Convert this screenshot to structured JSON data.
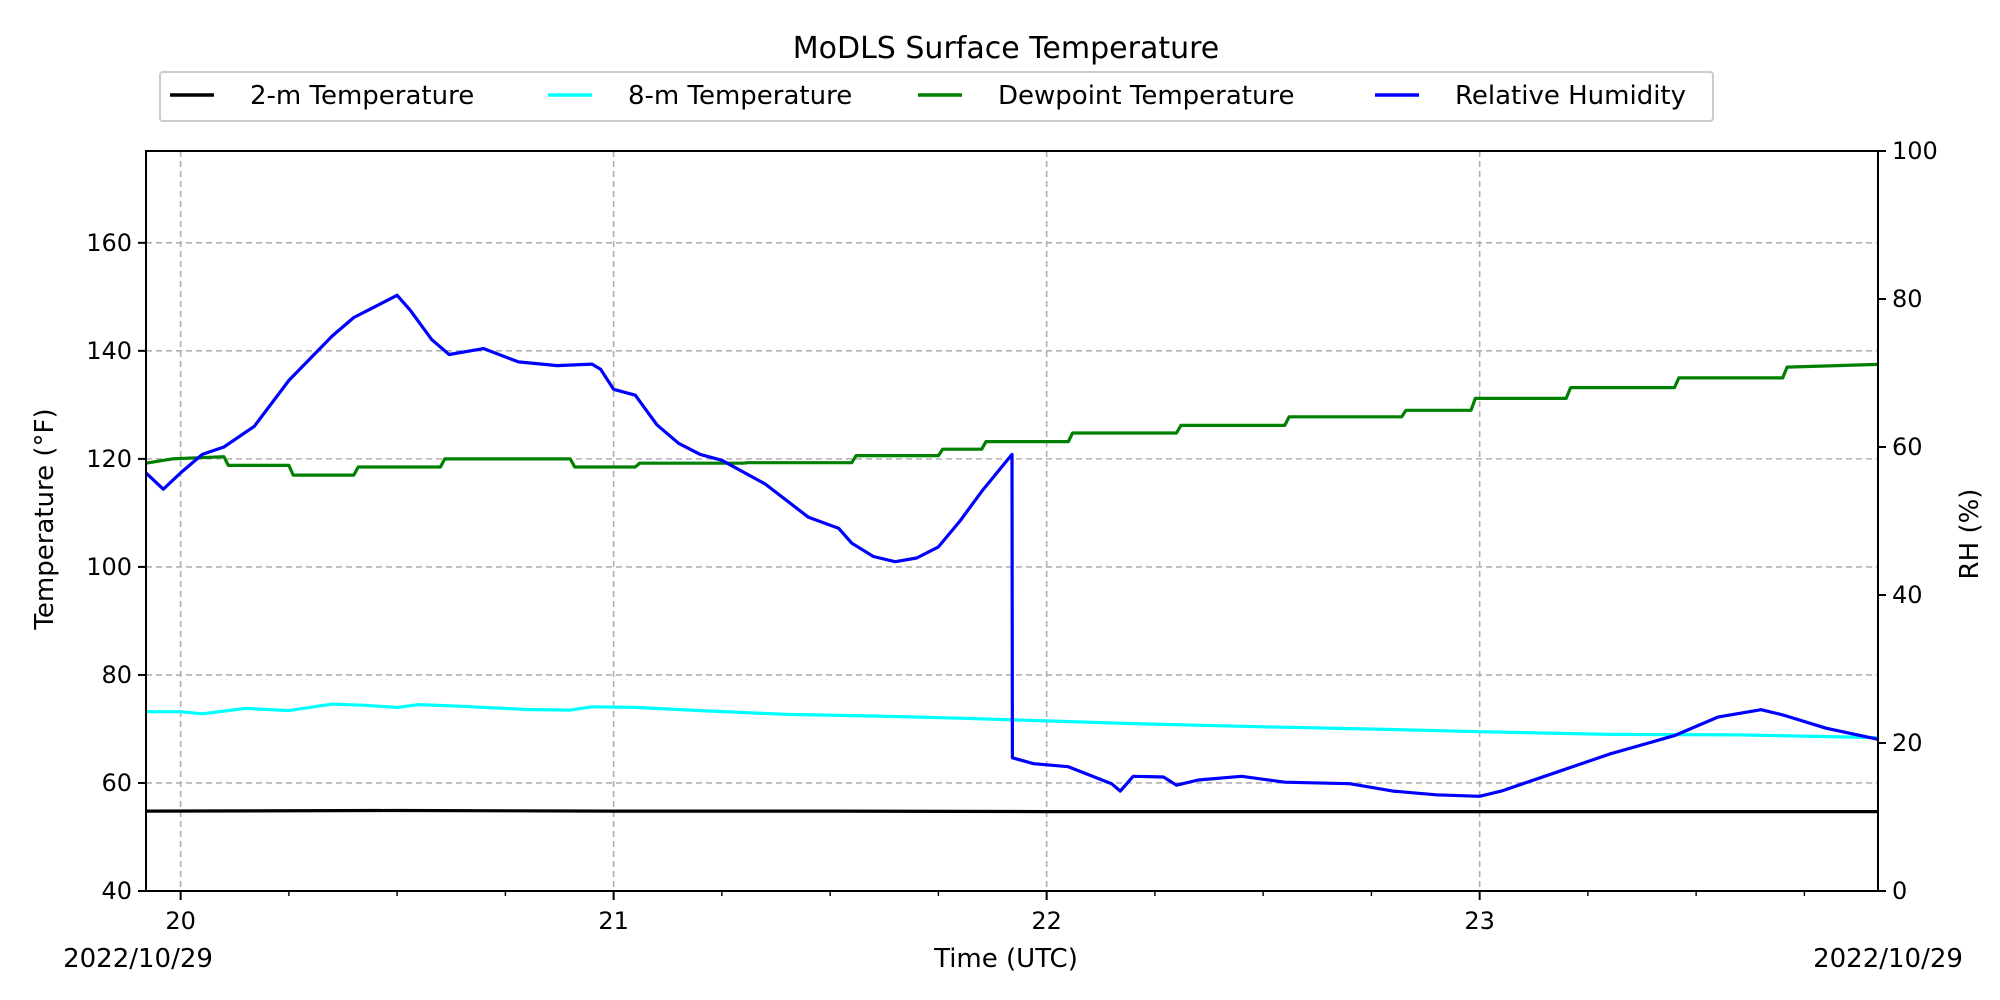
{
  "chart_data": {
    "type": "line",
    "title": "MoDLS Surface Temperature",
    "xlabel": "Time (UTC)",
    "ylabel": "Temperature ($^\\circ$F)",
    "ylabel_display": "Temperature (°F)",
    "y2label": "RH (%)",
    "date_left": "2022/10/29",
    "date_right": "2022/10/29",
    "xlim": [
      19.92,
      23.92
    ],
    "ylim": [
      40,
      177
    ],
    "y2lim": [
      0,
      100
    ],
    "x_ticks": [
      20,
      21,
      22,
      23
    ],
    "x_tick_labels": [
      "20",
      "21",
      "22",
      "23"
    ],
    "y_ticks": [
      40,
      60,
      80,
      100,
      120,
      140,
      160
    ],
    "y_tick_labels": [
      "40",
      "60",
      "80",
      "100",
      "120",
      "140",
      "160"
    ],
    "y2_ticks": [
      0,
      20,
      40,
      60,
      80,
      100
    ],
    "y2_tick_labels": [
      "0",
      "20",
      "40",
      "60",
      "80",
      "100"
    ],
    "grid": true,
    "legend_placement": "top-center, above plot",
    "series": [
      {
        "name": "2-m Temperature",
        "color": "#000000",
        "axis": "left",
        "points": [
          [
            19.92,
            54.8
          ],
          [
            20.5,
            54.9
          ],
          [
            21.0,
            54.8
          ],
          [
            21.5,
            54.8
          ],
          [
            22.0,
            54.7
          ],
          [
            22.5,
            54.7
          ],
          [
            23.0,
            54.7
          ],
          [
            23.5,
            54.7
          ],
          [
            23.92,
            54.7
          ]
        ]
      },
      {
        "name": "8-m Temperature",
        "color": "#00ffff",
        "axis": "left",
        "points": [
          [
            19.92,
            73.2
          ],
          [
            20.0,
            73.2
          ],
          [
            20.05,
            72.8
          ],
          [
            20.15,
            73.8
          ],
          [
            20.25,
            73.4
          ],
          [
            20.35,
            74.6
          ],
          [
            20.42,
            74.4
          ],
          [
            20.5,
            74.0
          ],
          [
            20.55,
            74.5
          ],
          [
            20.65,
            74.2
          ],
          [
            20.8,
            73.6
          ],
          [
            20.9,
            73.5
          ],
          [
            20.95,
            74.1
          ],
          [
            21.05,
            74.0
          ],
          [
            21.2,
            73.4
          ],
          [
            21.4,
            72.7
          ],
          [
            21.6,
            72.4
          ],
          [
            21.8,
            72.0
          ],
          [
            22.0,
            71.5
          ],
          [
            22.2,
            71.0
          ],
          [
            22.5,
            70.4
          ],
          [
            22.8,
            69.9
          ],
          [
            23.0,
            69.5
          ],
          [
            23.3,
            69.0
          ],
          [
            23.6,
            68.9
          ],
          [
            23.92,
            68.4
          ]
        ]
      },
      {
        "name": "Dewpoint Temperature",
        "color": "#008000",
        "axis": "left",
        "points": [
          [
            19.92,
            119.2
          ],
          [
            19.98,
            120.0
          ],
          [
            20.1,
            120.4
          ],
          [
            20.11,
            118.8
          ],
          [
            20.25,
            118.8
          ],
          [
            20.26,
            117.0
          ],
          [
            20.4,
            117.0
          ],
          [
            20.41,
            118.5
          ],
          [
            20.6,
            118.5
          ],
          [
            20.61,
            120.0
          ],
          [
            20.9,
            120.0
          ],
          [
            20.91,
            118.5
          ],
          [
            21.05,
            118.5
          ],
          [
            21.06,
            119.2
          ],
          [
            21.3,
            119.2
          ],
          [
            21.31,
            119.3
          ],
          [
            21.55,
            119.3
          ],
          [
            21.56,
            120.6
          ],
          [
            21.75,
            120.6
          ],
          [
            21.76,
            121.8
          ],
          [
            21.85,
            121.8
          ],
          [
            21.86,
            123.2
          ],
          [
            22.05,
            123.2
          ],
          [
            22.06,
            124.8
          ],
          [
            22.3,
            124.8
          ],
          [
            22.31,
            126.2
          ],
          [
            22.55,
            126.2
          ],
          [
            22.56,
            127.8
          ],
          [
            22.82,
            127.8
          ],
          [
            22.83,
            129.0
          ],
          [
            22.98,
            129.0
          ],
          [
            22.99,
            131.2
          ],
          [
            23.2,
            131.2
          ],
          [
            23.21,
            133.2
          ],
          [
            23.45,
            133.2
          ],
          [
            23.46,
            135.0
          ],
          [
            23.7,
            135.0
          ],
          [
            23.71,
            137.0
          ],
          [
            23.92,
            137.5
          ]
        ]
      },
      {
        "name": "Relative Humidity",
        "color": "#0000ff",
        "axis": "right",
        "points": [
          [
            19.92,
            56.5
          ],
          [
            19.96,
            54.3
          ],
          [
            20.0,
            56.5
          ],
          [
            20.05,
            59.0
          ],
          [
            20.1,
            60.0
          ],
          [
            20.17,
            62.8
          ],
          [
            20.25,
            69.0
          ],
          [
            20.3,
            72.0
          ],
          [
            20.35,
            75.0
          ],
          [
            20.4,
            77.5
          ],
          [
            20.45,
            79.0
          ],
          [
            20.5,
            80.5
          ],
          [
            20.53,
            78.5
          ],
          [
            20.58,
            74.5
          ],
          [
            20.62,
            72.5
          ],
          [
            20.7,
            73.3
          ],
          [
            20.78,
            71.5
          ],
          [
            20.87,
            71.0
          ],
          [
            20.95,
            71.2
          ],
          [
            20.97,
            70.5
          ],
          [
            21.0,
            67.8
          ],
          [
            21.05,
            67.0
          ],
          [
            21.1,
            63.0
          ],
          [
            21.15,
            60.5
          ],
          [
            21.2,
            59.0
          ],
          [
            21.25,
            58.2
          ],
          [
            21.35,
            55.0
          ],
          [
            21.45,
            50.5
          ],
          [
            21.52,
            49.0
          ],
          [
            21.55,
            47.0
          ],
          [
            21.6,
            45.2
          ],
          [
            21.65,
            44.5
          ],
          [
            21.7,
            45.0
          ],
          [
            21.75,
            46.5
          ],
          [
            21.8,
            50.0
          ],
          [
            21.85,
            54.0
          ],
          [
            21.92,
            59.0
          ],
          [
            21.921,
            18.0
          ],
          [
            21.97,
            17.2
          ],
          [
            22.05,
            16.8
          ],
          [
            22.15,
            14.5
          ],
          [
            22.17,
            13.5
          ],
          [
            22.2,
            15.5
          ],
          [
            22.27,
            15.4
          ],
          [
            22.3,
            14.3
          ],
          [
            22.35,
            15.0
          ],
          [
            22.45,
            15.5
          ],
          [
            22.55,
            14.7
          ],
          [
            22.7,
            14.5
          ],
          [
            22.8,
            13.5
          ],
          [
            22.9,
            13.0
          ],
          [
            23.0,
            12.8
          ],
          [
            23.05,
            13.5
          ],
          [
            23.15,
            15.5
          ],
          [
            23.3,
            18.5
          ],
          [
            23.45,
            21.0
          ],
          [
            23.55,
            23.5
          ],
          [
            23.65,
            24.5
          ],
          [
            23.7,
            23.8
          ],
          [
            23.8,
            22.0
          ],
          [
            23.92,
            20.5
          ]
        ]
      }
    ]
  }
}
